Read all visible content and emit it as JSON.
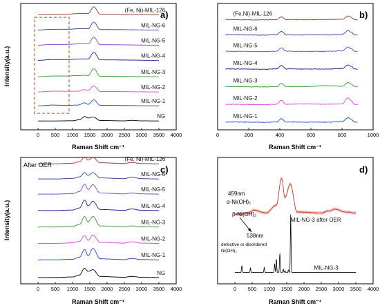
{
  "figure": {
    "panels": [
      {
        "id": "a",
        "panel_label": "a)",
        "title": "",
        "xlabel": "Raman Shift cm⁻¹",
        "ylabel": "Intensity(a.u.)",
        "xlim": [
          -500,
          4000
        ],
        "xticks": [
          0,
          500,
          1000,
          1500,
          2000,
          2500,
          3000,
          3500,
          4000
        ],
        "highlight": {
          "style": "dashed-box",
          "x_range": [
            -100,
            900
          ],
          "color": "#e07050"
        },
        "annotations": [],
        "series": [
          {
            "name": "NG",
            "color": "#000000"
          },
          {
            "name": "MIL-NG-1",
            "color": "#1f3fd0"
          },
          {
            "name": "MIL-NG-2",
            "color": "#e040e0"
          },
          {
            "name": "MIL-NG-3",
            "color": "#2a9a2a"
          },
          {
            "name": "MIL-NG-4",
            "color": "#1a1a9a"
          },
          {
            "name": "MIL-NG-5",
            "color": "#7a3fd0"
          },
          {
            "name": "MIL-NG-6",
            "color": "#2a3f9a"
          },
          {
            "name": "(Fe, Ni)-MIL-126",
            "color": "#8a3a2a"
          }
        ]
      },
      {
        "id": "b",
        "panel_label": "b)",
        "title": "",
        "xlabel": "Raman Shift cm⁻¹",
        "ylabel": "",
        "xlim": [
          0,
          1000
        ],
        "xticks": [
          0,
          200,
          400,
          600,
          800,
          1000
        ],
        "annotations": [],
        "series": [
          {
            "name": "MIL-NG-1",
            "color": "#1f3fd0"
          },
          {
            "name": "MIL-NG-2",
            "color": "#e040e0"
          },
          {
            "name": "MIL-NG-3",
            "color": "#2a9a2a"
          },
          {
            "name": "MIL-NG-4",
            "color": "#1a1a9a"
          },
          {
            "name": "MIL-NG-5",
            "color": "#7a3fd0"
          },
          {
            "name": "MIL-NG-6",
            "color": "#2a3f9a"
          },
          {
            "name": "(Fe,Ni)-MIL-126",
            "color": "#8a3a2a"
          }
        ]
      },
      {
        "id": "c",
        "panel_label": "c)",
        "title": "After OER",
        "xlabel": "Raman Shift cm⁻¹",
        "ylabel": "Intensity(a.u.)",
        "xlim": [
          -500,
          4000
        ],
        "xticks": [
          0,
          500,
          1000,
          1500,
          2000,
          2500,
          3000,
          3500,
          4000
        ],
        "annotations": [],
        "series": [
          {
            "name": "NG",
            "color": "#000000"
          },
          {
            "name": "MIL-NG-1",
            "color": "#1f3fd0"
          },
          {
            "name": "MIL-NG-2",
            "color": "#e040e0"
          },
          {
            "name": "MIL-NG-3",
            "color": "#2a9a2a"
          },
          {
            "name": "MIL-NG-4",
            "color": "#1a1a9a"
          },
          {
            "name": "MIL-NG-5",
            "color": "#7a3fd0"
          },
          {
            "name": "MIL-NG-6",
            "color": "#2a3f9a"
          },
          {
            "name": "(Fe, Ni)-MIL-126",
            "color": "#8a3a2a"
          }
        ]
      },
      {
        "id": "d",
        "panel_label": "d)",
        "title": "",
        "xlabel": "Raman Shift cm⁻¹",
        "ylabel": "",
        "xlim": [
          -500,
          4000
        ],
        "xticks": [
          0,
          500,
          1000,
          1500,
          2000,
          2500,
          3000,
          3500,
          4000
        ],
        "annotations": [
          {
            "text": "459nm"
          },
          {
            "text": "α-Ni(OH)₂"
          },
          {
            "text": "β-Ni(OH)₂"
          },
          {
            "text": "538nm"
          },
          {
            "text": "defective or disordered"
          },
          {
            "text": "Ni(OH)₂"
          }
        ],
        "series": [
          {
            "name": "MIL-NG-3",
            "color": "#000000"
          },
          {
            "name": "MIL-NG-3 after OER",
            "color": "#c0392b"
          }
        ]
      }
    ]
  },
  "chart_data": [
    {
      "type": "line",
      "panel": "a",
      "xlabel": "Raman Shift cm⁻¹",
      "ylabel": "Intensity(a.u.)",
      "xlim": [
        -500,
        4000
      ],
      "grid": false,
      "series": [
        {
          "name": "NG",
          "x": [
            0,
            500,
            1000,
            1200,
            1350,
            1450,
            1590,
            1800,
            2500,
            2700,
            3000,
            3500
          ],
          "y": [
            0,
            0,
            0.1,
            0.5,
            1.8,
            1.2,
            1.6,
            0.2,
            0.05,
            0.25,
            0.05,
            0
          ]
        },
        {
          "name": "MIL-NG-1",
          "x": [
            0,
            420,
            860,
            1150,
            1350,
            1450,
            1615,
            1800,
            3500
          ],
          "y": [
            0,
            0.3,
            0.2,
            0.3,
            1.2,
            0.6,
            2.4,
            0.2,
            0
          ]
        },
        {
          "name": "MIL-NG-2",
          "x": [
            0,
            420,
            860,
            1150,
            1350,
            1450,
            1615,
            1800,
            3500
          ],
          "y": [
            0,
            0.3,
            0.25,
            0.3,
            0.9,
            0.6,
            2.4,
            0.2,
            0
          ]
        },
        {
          "name": "MIL-NG-3",
          "x": [
            0,
            420,
            860,
            1150,
            1350,
            1450,
            1615,
            1800,
            3500
          ],
          "y": [
            0,
            0.3,
            0.3,
            0.5,
            0.6,
            0.5,
            3.2,
            0.2,
            0
          ]
        },
        {
          "name": "MIL-NG-4",
          "x": [
            0,
            420,
            860,
            1150,
            1350,
            1450,
            1615,
            1800,
            3500
          ],
          "y": [
            0,
            0.3,
            0.3,
            0.5,
            0.6,
            0.5,
            3.2,
            0.2,
            0
          ]
        },
        {
          "name": "MIL-NG-5",
          "x": [
            0,
            420,
            860,
            1150,
            1350,
            1450,
            1615,
            1800,
            3500
          ],
          "y": [
            0,
            0.3,
            0.3,
            0.5,
            0.6,
            0.5,
            3.2,
            0.2,
            0
          ]
        },
        {
          "name": "MIL-NG-6",
          "x": [
            0,
            420,
            860,
            1150,
            1350,
            1450,
            1615,
            1800,
            3500
          ],
          "y": [
            0,
            0.3,
            0.3,
            0.5,
            0.6,
            0.5,
            3.2,
            0.2,
            0
          ]
        },
        {
          "name": "(Fe, Ni)-MIL-126",
          "x": [
            0,
            420,
            860,
            1150,
            1350,
            1450,
            1615,
            1800,
            3500
          ],
          "y": [
            0,
            0.3,
            0.3,
            0.5,
            0.6,
            0.5,
            3.2,
            0.2,
            0
          ]
        }
      ]
    },
    {
      "type": "line",
      "panel": "b",
      "xlabel": "Raman Shift cm⁻¹",
      "xlim": [
        0,
        1000
      ],
      "grid": false,
      "series": [
        {
          "name": "MIL-NG-1",
          "x": [
            50,
            300,
            380,
            410,
            440,
            550,
            700,
            800,
            840,
            860,
            880,
            900
          ],
          "y": [
            0.5,
            0.4,
            0.5,
            1.6,
            0.5,
            0.45,
            0.45,
            0.6,
            1.8,
            1.3,
            0.5,
            0.4
          ]
        },
        {
          "name": "MIL-NG-2",
          "x": [
            50,
            300,
            380,
            410,
            440,
            550,
            700,
            800,
            840,
            860,
            880,
            900
          ],
          "y": [
            0.5,
            0.4,
            0.5,
            1.8,
            0.5,
            0.6,
            0.5,
            0.6,
            2.6,
            1.6,
            0.5,
            0.4
          ]
        },
        {
          "name": "MIL-NG-3",
          "x": [
            50,
            300,
            380,
            410,
            440,
            550,
            700,
            800,
            840,
            860,
            880,
            900
          ],
          "y": [
            0.5,
            0.4,
            0.5,
            1.5,
            0.5,
            0.5,
            0.8,
            0.6,
            1.8,
            1.3,
            0.5,
            0.4
          ]
        },
        {
          "name": "MIL-NG-4",
          "x": [
            50,
            300,
            380,
            410,
            440,
            550,
            700,
            800,
            840,
            860,
            880,
            900
          ],
          "y": [
            0.5,
            0.4,
            0.5,
            1.6,
            0.5,
            0.45,
            0.45,
            0.6,
            1.8,
            1.3,
            0.5,
            0.4
          ]
        },
        {
          "name": "MIL-NG-5",
          "x": [
            50,
            300,
            380,
            410,
            440,
            550,
            700,
            800,
            840,
            860,
            880,
            900
          ],
          "y": [
            0.5,
            0.4,
            0.5,
            1.6,
            0.5,
            0.45,
            0.45,
            0.6,
            1.8,
            1.3,
            0.5,
            0.4
          ]
        },
        {
          "name": "MIL-NG-6",
          "x": [
            50,
            300,
            380,
            410,
            440,
            550,
            700,
            800,
            840,
            860,
            880,
            900
          ],
          "y": [
            0.5,
            0.4,
            0.5,
            1.6,
            0.5,
            0.45,
            0.45,
            0.6,
            1.8,
            1.3,
            0.5,
            0.4
          ]
        },
        {
          "name": "(Fe,Ni)-MIL-126",
          "x": [
            50,
            300,
            380,
            410,
            440,
            550,
            700,
            800,
            840,
            860,
            880,
            900
          ],
          "y": [
            0.5,
            0.4,
            0.5,
            1.4,
            0.5,
            0.45,
            0.5,
            0.6,
            1.6,
            1.2,
            0.5,
            0.4
          ]
        }
      ]
    },
    {
      "type": "line",
      "panel": "c",
      "title": "After OER",
      "xlabel": "Raman Shift cm⁻¹",
      "ylabel": "Intensity(a.u.)",
      "xlim": [
        -500,
        4000
      ],
      "grid": false,
      "series": [
        {
          "name": "NG",
          "x": [
            0,
            500,
            1000,
            1200,
            1350,
            1450,
            1590,
            1800,
            2500,
            2700,
            3000,
            3500
          ],
          "y": [
            0,
            0,
            0.1,
            0.5,
            1.8,
            1.2,
            1.5,
            0.2,
            0.05,
            0.2,
            0.05,
            0
          ]
        },
        {
          "name": "MIL-NG-1",
          "x": [
            0,
            500,
            1000,
            1200,
            1350,
            1450,
            1590,
            1800,
            2500,
            2700,
            3000,
            3500
          ],
          "y": [
            0,
            0,
            0.1,
            0.5,
            2.0,
            0.8,
            2.2,
            0.2,
            0.05,
            0.25,
            0.05,
            0
          ]
        },
        {
          "name": "MIL-NG-2",
          "x": [
            0,
            500,
            1000,
            1200,
            1350,
            1450,
            1590,
            1800,
            2500,
            2700,
            3000,
            3500
          ],
          "y": [
            0,
            0,
            0.1,
            0.4,
            1.5,
            0.6,
            1.6,
            0.2,
            0.05,
            0.3,
            0.05,
            0
          ]
        },
        {
          "name": "MIL-NG-3",
          "x": [
            0,
            500,
            1000,
            1200,
            1350,
            1450,
            1590,
            1800,
            2500,
            2700,
            3000,
            3500
          ],
          "y": [
            0,
            0,
            0.1,
            0.5,
            2.0,
            1.0,
            2.0,
            0.2,
            0.05,
            0.2,
            0.05,
            0
          ]
        },
        {
          "name": "MIL-NG-4",
          "x": [
            0,
            500,
            1000,
            1200,
            1350,
            1450,
            1590,
            1800,
            2500,
            2700,
            3000,
            3500
          ],
          "y": [
            0,
            0,
            0.1,
            0.5,
            2.0,
            0.9,
            1.8,
            0.2,
            0.05,
            0.3,
            0.05,
            0
          ]
        },
        {
          "name": "MIL-NG-5",
          "x": [
            0,
            500,
            1000,
            1200,
            1350,
            1450,
            1590,
            1800,
            2500,
            2700,
            3000,
            3500
          ],
          "y": [
            0,
            0,
            0.1,
            0.5,
            1.9,
            0.9,
            1.8,
            0.2,
            0.05,
            0.2,
            0.05,
            0
          ]
        },
        {
          "name": "MIL-NG-6",
          "x": [
            0,
            500,
            1000,
            1200,
            1350,
            1450,
            1590,
            1800,
            2500,
            2700,
            3000,
            3500
          ],
          "y": [
            0,
            0,
            0.1,
            0.4,
            1.2,
            0.7,
            1.2,
            0.2,
            0.05,
            0.35,
            0.05,
            0
          ]
        },
        {
          "name": "(Fe, Ni)-MIL-126",
          "x": [
            0,
            500,
            1000,
            1200,
            1350,
            1450,
            1590,
            1800,
            2500,
            2700,
            3000,
            3500
          ],
          "y": [
            0,
            0,
            0.1,
            0.4,
            1.3,
            0.7,
            1.2,
            0.2,
            0.05,
            0.25,
            0.05,
            0
          ]
        }
      ]
    },
    {
      "type": "line",
      "panel": "d",
      "xlabel": "Raman Shift cm⁻¹",
      "xlim": [
        -500,
        4000
      ],
      "grid": false,
      "series": [
        {
          "name": "MIL-NG-3",
          "x": [
            0,
            150,
            200,
            400,
            450,
            800,
            850,
            1100,
            1150,
            1200,
            1300,
            1400,
            1450,
            1550,
            1615,
            1700,
            2500,
            3500
          ],
          "y": [
            0,
            0,
            0.8,
            0,
            0.5,
            0,
            0.6,
            0,
            1.0,
            1.6,
            2.2,
            0.4,
            0.2,
            0.3,
            6.5,
            0,
            0,
            0
          ]
        },
        {
          "name": "MIL-NG-3 after OER",
          "x": [
            0,
            300,
            459,
            538,
            900,
            1200,
            1350,
            1450,
            1600,
            1800,
            2500,
            2700,
            2900,
            3200,
            3500
          ],
          "y": [
            0.3,
            0.3,
            0.5,
            0.7,
            0.4,
            1.2,
            4.0,
            2.0,
            3.4,
            0.5,
            0.4,
            0.6,
            0.8,
            0.5,
            0.4
          ]
        }
      ]
    }
  ]
}
